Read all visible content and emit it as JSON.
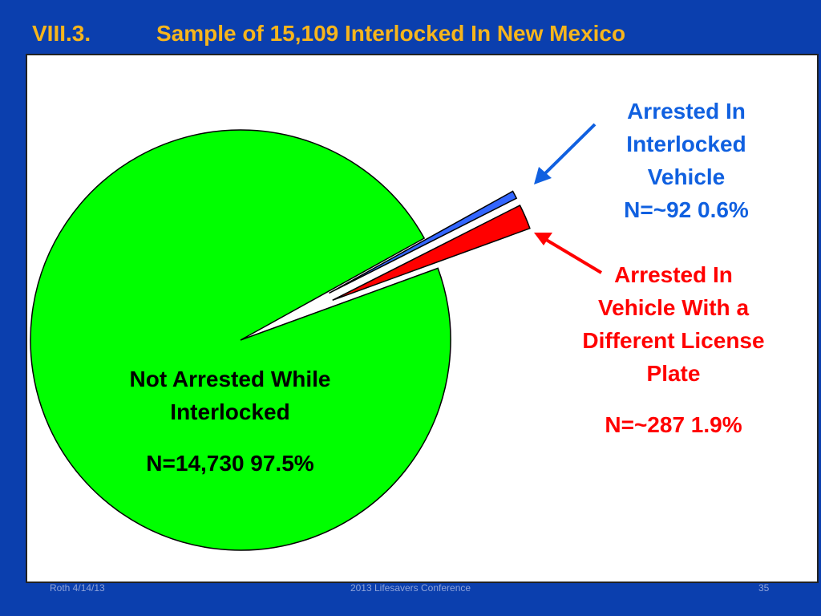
{
  "slide_number": "VIII.3.",
  "footer": {
    "left": "Roth 4/14/13",
    "center": "2013 Lifesavers Conference",
    "right": "35"
  },
  "chart_data": {
    "type": "pie",
    "title": "Sample of 15,109 Interlocked In New Mexico",
    "categories": [
      "Not Arrested While Interlocked",
      "Arrested In Interlocked Vehicle",
      "Arrested In Vehicle With a Different License Plate"
    ],
    "values": [
      97.5,
      0.6,
      1.9
    ],
    "value_labels": [
      "N=14,730  97.5%",
      "N=~92  0.6%",
      "N=~287  1.9%"
    ],
    "colors": [
      "#00ff00",
      "#3366ff",
      "#ff0000"
    ],
    "label_colors": [
      "#000000",
      "#1060e0",
      "#ff0000"
    ],
    "exploded": [
      false,
      true,
      true
    ]
  }
}
